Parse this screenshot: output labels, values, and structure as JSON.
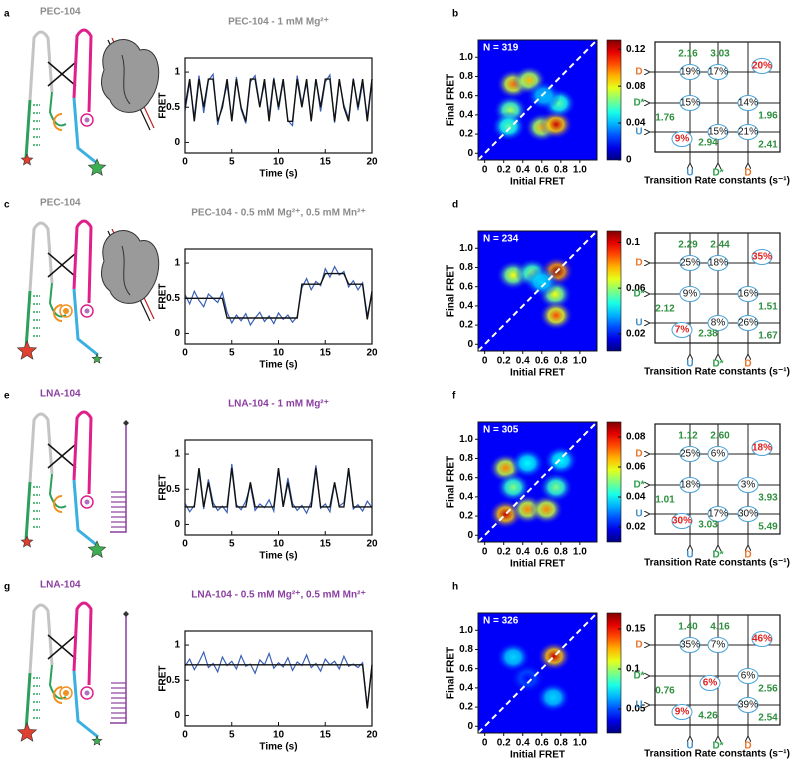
{
  "panel_labels": [
    "a",
    "b",
    "c",
    "d",
    "e",
    "f",
    "g",
    "h"
  ],
  "constructs": [
    {
      "name": "PEC-104",
      "color": "#8c8c8c"
    },
    {
      "name": "PEC-104",
      "color": "#8c8c8c"
    },
    {
      "name": "LNA-104",
      "color": "#8a3fa0"
    },
    {
      "name": "LNA-104",
      "color": "#8a3fa0"
    }
  ],
  "chart_data": [
    {
      "type": "line",
      "title": "PEC-104 - 1 mM Mg²⁺",
      "title_color": "#8c8c8c",
      "xlabel": "Time (s)",
      "ylabel": "FRET",
      "x": [
        0,
        0.5,
        1,
        1.5,
        2,
        2.5,
        3,
        3.5,
        4,
        4.5,
        5,
        5.5,
        6,
        6.5,
        7,
        7.5,
        8,
        8.5,
        9,
        9.5,
        10,
        10.5,
        11,
        11.5,
        12,
        12.5,
        13,
        13.5,
        14,
        14.5,
        15,
        15.5,
        16,
        16.5,
        17,
        17.5,
        18,
        18.5,
        19,
        19.5,
        20
      ],
      "series": [
        {
          "color": "#3a5fb5",
          "values": [
            0.45,
            0.85,
            0.36,
            0.95,
            0.42,
            0.88,
            0.97,
            0.25,
            0.55,
            0.82,
            0.34,
            0.93,
            0.47,
            0.27,
            0.86,
            0.95,
            0.52,
            0.84,
            0.38,
            0.92,
            0.46,
            0.87,
            0.31,
            0.24,
            0.95,
            0.55,
            0.84,
            0.33,
            0.9,
            0.44,
            0.86,
            0.96,
            0.28,
            0.88,
            0.53,
            0.34,
            0.91,
            0.46,
            0.84,
            0.36,
            0.9
          ]
        },
        {
          "color": "#111111",
          "values": [
            0.5,
            0.9,
            0.3,
            0.9,
            0.5,
            0.9,
            0.9,
            0.3,
            0.5,
            0.9,
            0.3,
            0.9,
            0.5,
            0.3,
            0.9,
            0.9,
            0.5,
            0.9,
            0.3,
            0.9,
            0.5,
            0.9,
            0.3,
            0.3,
            0.9,
            0.5,
            0.9,
            0.3,
            0.9,
            0.5,
            0.9,
            0.9,
            0.3,
            0.9,
            0.5,
            0.3,
            0.9,
            0.5,
            0.9,
            0.3,
            0.9
          ]
        }
      ],
      "xlim": [
        0,
        20
      ],
      "ylim": [
        -0.15,
        1.2
      ],
      "xticks": [
        0,
        5,
        10,
        15,
        20
      ],
      "yticks": [
        0,
        0.5,
        1
      ]
    },
    {
      "type": "heatmap",
      "xlabel": "Initial FRET",
      "ylabel": "Final FRET",
      "annotation": "N = 319",
      "x": [
        0.3,
        0.47,
        0.27,
        0.25,
        0.6,
        0.75,
        0.78,
        0.62
      ],
      "y": [
        0.72,
        0.76,
        0.45,
        0.28,
        0.27,
        0.3,
        0.52,
        0.6
      ],
      "values": [
        0.1,
        0.09,
        0.07,
        0.06,
        0.09,
        0.12,
        0.06,
        0.04
      ],
      "xlim": [
        -0.07,
        1.18
      ],
      "ylim": [
        -0.07,
        1.18
      ],
      "xticks": [
        0,
        0.2,
        0.4,
        0.6,
        0.8,
        {
          "value": 1,
          "label": "1.0"
        }
      ],
      "yticks": [
        0,
        0.2,
        0.4,
        0.6,
        0.8,
        {
          "value": 1,
          "label": "1.0"
        }
      ],
      "zlim": [
        0,
        0.13
      ],
      "zticks": [
        0,
        0.04,
        0.08,
        0.12
      ]
    },
    {
      "type": "line",
      "title": "PEC-104 - 0.5 mM Mg²⁺, 0.5 mM Mn²⁺",
      "title_color": "#8c8c8c",
      "xlabel": "Time (s)",
      "ylabel": "FRET",
      "x": [
        0,
        0.5,
        1,
        1.5,
        2,
        2.5,
        3,
        3.5,
        4,
        4.5,
        5,
        5.5,
        6,
        6.5,
        7,
        7.5,
        8,
        8.5,
        9,
        9.5,
        10,
        10.5,
        11,
        11.5,
        12,
        12.5,
        13,
        13.5,
        14,
        14.5,
        15,
        15.5,
        16,
        16.5,
        17,
        17.5,
        18,
        18.5,
        19,
        19.5,
        20
      ],
      "series": [
        {
          "color": "#3a5fb5",
          "values": [
            0.55,
            0.42,
            0.6,
            0.47,
            0.38,
            0.56,
            0.5,
            0.44,
            0.58,
            0.3,
            0.15,
            0.26,
            0.18,
            0.28,
            0.12,
            0.22,
            0.3,
            0.17,
            0.25,
            0.14,
            0.29,
            0.2,
            0.26,
            0.16,
            0.24,
            0.65,
            0.78,
            0.62,
            0.74,
            0.68,
            0.92,
            0.8,
            0.95,
            0.83,
            0.88,
            0.66,
            0.75,
            0.62,
            0.72,
            0.25,
            0.55
          ]
        },
        {
          "color": "#111111",
          "values": [
            0.5,
            0.5,
            0.5,
            0.5,
            0.5,
            0.5,
            0.5,
            0.5,
            0.5,
            0.22,
            0.22,
            0.22,
            0.22,
            0.22,
            0.22,
            0.22,
            0.22,
            0.22,
            0.22,
            0.22,
            0.22,
            0.22,
            0.22,
            0.22,
            0.22,
            0.7,
            0.7,
            0.7,
            0.7,
            0.7,
            0.85,
            0.85,
            0.85,
            0.85,
            0.85,
            0.7,
            0.7,
            0.7,
            0.7,
            0.2,
            0.6
          ]
        }
      ],
      "xlim": [
        0,
        20
      ],
      "ylim": [
        -0.15,
        1.2
      ],
      "xticks": [
        0,
        5,
        10,
        15,
        20
      ],
      "yticks": [
        0,
        0.5,
        1
      ]
    },
    {
      "type": "heatmap",
      "xlabel": "Initial FRET",
      "ylabel": "Final FRET",
      "annotation": "N = 234",
      "x": [
        0.3,
        0.5,
        0.76,
        0.74,
        0.75,
        0.6
      ],
      "y": [
        0.72,
        0.74,
        0.76,
        0.52,
        0.3,
        0.65
      ],
      "values": [
        0.07,
        0.06,
        0.11,
        0.07,
        0.09,
        0.04
      ],
      "xlim": [
        -0.07,
        1.18
      ],
      "ylim": [
        -0.07,
        1.18
      ],
      "xticks": [
        0,
        0.2,
        0.4,
        0.6,
        0.8,
        {
          "value": 1,
          "label": "1.0"
        }
      ],
      "yticks": [
        0,
        0.2,
        0.4,
        0.6,
        0.8,
        {
          "value": 1,
          "label": "1.0"
        }
      ],
      "zlim": [
        0.005,
        0.11
      ],
      "zticks": [
        0.02,
        0.06,
        0.1
      ]
    },
    {
      "type": "line",
      "title": "LNA-104 - 1 mM Mg²⁺",
      "title_color": "#8a3fa0",
      "xlabel": "Time (s)",
      "ylabel": "FRET",
      "x": [
        0,
        0.5,
        1,
        1.5,
        2,
        2.5,
        3,
        3.5,
        4,
        4.5,
        5,
        5.5,
        6,
        6.5,
        7,
        7.5,
        8,
        8.5,
        9,
        9.5,
        10,
        10.5,
        11,
        11.5,
        12,
        12.5,
        13,
        13.5,
        14,
        14.5,
        15,
        15.5,
        16,
        16.5,
        17,
        17.5,
        18,
        18.5,
        19,
        19.5,
        20
      ],
      "series": [
        {
          "color": "#3a5fb5",
          "values": [
            0.3,
            0.18,
            0.27,
            0.75,
            0.22,
            0.64,
            0.31,
            0.2,
            0.26,
            0.17,
            0.86,
            0.28,
            0.21,
            0.33,
            0.55,
            0.2,
            0.29,
            0.24,
            0.35,
            0.19,
            0.78,
            0.26,
            0.66,
            0.3,
            0.2,
            0.27,
            0.16,
            0.32,
            0.84,
            0.23,
            0.29,
            0.18,
            0.58,
            0.26,
            0.31,
            0.76,
            0.22,
            0.28,
            0.19,
            0.33,
            0.24
          ]
        },
        {
          "color": "#111111",
          "values": [
            0.25,
            0.25,
            0.25,
            0.8,
            0.25,
            0.6,
            0.25,
            0.25,
            0.25,
            0.25,
            0.8,
            0.25,
            0.25,
            0.25,
            0.6,
            0.25,
            0.25,
            0.25,
            0.25,
            0.25,
            0.8,
            0.25,
            0.6,
            0.25,
            0.25,
            0.25,
            0.25,
            0.25,
            0.8,
            0.25,
            0.25,
            0.25,
            0.6,
            0.25,
            0.25,
            0.8,
            0.25,
            0.25,
            0.25,
            0.25,
            0.25
          ]
        }
      ],
      "xlim": [
        0,
        20
      ],
      "ylim": [
        -0.15,
        1.2
      ],
      "xticks": [
        0,
        5,
        10,
        15,
        20
      ],
      "yticks": [
        0,
        0.5,
        1
      ]
    },
    {
      "type": "heatmap",
      "xlabel": "Initial FRET",
      "ylabel": "Final FRET",
      "annotation": "N = 305",
      "x": [
        0.22,
        0.22,
        0.45,
        0.65,
        0.75,
        0.3,
        0.8,
        0.45
      ],
      "y": [
        0.22,
        0.7,
        0.27,
        0.27,
        0.5,
        0.5,
        0.78,
        0.75
      ],
      "values": [
        0.085,
        0.07,
        0.07,
        0.07,
        0.05,
        0.05,
        0.04,
        0.04
      ],
      "xlim": [
        -0.07,
        1.18
      ],
      "ylim": [
        -0.07,
        1.18
      ],
      "xticks": [
        0,
        0.2,
        0.4,
        0.6,
        0.8,
        {
          "value": 1,
          "label": "1.0"
        }
      ],
      "yticks": [
        0,
        0.2,
        0.4,
        0.6,
        0.8,
        {
          "value": 1,
          "label": "1.0"
        }
      ],
      "zlim": [
        0.01,
        0.09
      ],
      "zticks": [
        0.02,
        0.04,
        0.06,
        0.08
      ]
    },
    {
      "type": "line",
      "title": "LNA-104 - 0.5 mM Mg²⁺, 0.5 mM Mn²⁺",
      "title_color": "#8a3fa0",
      "xlabel": "Time (s)",
      "ylabel": "FRET",
      "x": [
        0,
        0.5,
        1,
        1.5,
        2,
        2.5,
        3,
        3.5,
        4,
        4.5,
        5,
        5.5,
        6,
        6.5,
        7,
        7.5,
        8,
        8.5,
        9,
        9.5,
        10,
        10.5,
        11,
        11.5,
        12,
        12.5,
        13,
        13.5,
        14,
        14.5,
        15,
        15.5,
        16,
        16.5,
        17,
        17.5,
        18,
        18.5,
        19,
        19.5,
        20
      ],
      "series": [
        {
          "color": "#3a5fb5",
          "values": [
            0.7,
            0.8,
            0.65,
            0.76,
            0.9,
            0.68,
            0.74,
            0.62,
            0.83,
            0.71,
            0.77,
            0.66,
            0.85,
            0.7,
            0.73,
            0.6,
            0.79,
            0.72,
            0.88,
            0.67,
            0.75,
            0.69,
            0.82,
            0.64,
            0.76,
            0.71,
            0.86,
            0.68,
            0.74,
            0.63,
            0.8,
            0.72,
            0.77,
            0.66,
            0.84,
            0.7,
            0.73,
            0.68,
            0.75,
            0.12,
            0.7
          ]
        },
        {
          "color": "#111111",
          "values": [
            0.72,
            0.72,
            0.72,
            0.72,
            0.72,
            0.72,
            0.72,
            0.72,
            0.72,
            0.72,
            0.72,
            0.72,
            0.72,
            0.72,
            0.72,
            0.72,
            0.72,
            0.72,
            0.72,
            0.72,
            0.72,
            0.72,
            0.72,
            0.72,
            0.72,
            0.72,
            0.72,
            0.72,
            0.72,
            0.72,
            0.72,
            0.72,
            0.72,
            0.72,
            0.72,
            0.72,
            0.72,
            0.72,
            0.72,
            0.1,
            0.72
          ]
        }
      ],
      "xlim": [
        0,
        20
      ],
      "ylim": [
        -0.15,
        1.2
      ],
      "xticks": [
        0,
        5,
        10,
        15,
        20
      ],
      "yticks": [
        0,
        0.5,
        1
      ]
    },
    {
      "type": "heatmap",
      "xlabel": "Initial FRET",
      "ylabel": "Final FRET",
      "annotation": "N = 326",
      "x": [
        0.73,
        0.3,
        0.72,
        0.45
      ],
      "y": [
        0.73,
        0.72,
        0.3,
        0.5
      ],
      "values": [
        0.16,
        0.07,
        0.07,
        0.04
      ],
      "xlim": [
        -0.07,
        1.18
      ],
      "ylim": [
        -0.07,
        1.18
      ],
      "xticks": [
        0,
        0.2,
        0.4,
        0.6,
        0.8,
        {
          "value": 1,
          "label": "1.0"
        }
      ],
      "yticks": [
        0,
        0.2,
        0.4,
        0.6,
        0.8,
        {
          "value": 1,
          "label": "1.0"
        }
      ],
      "zlim": [
        0.02,
        0.17
      ],
      "zticks": [
        0.05,
        0.1,
        0.15
      ]
    }
  ],
  "rate_state_colors": [
    "#3d8fcc",
    "#2e9e4a",
    "#e8752a"
  ],
  "rate_diagrams": [
    {
      "state_labels": [
        "U",
        "D*",
        "D"
      ],
      "percentages": [
        [
          "19%",
          "17%",
          "20%"
        ],
        [
          "15%",
          null,
          "14%"
        ],
        [
          "9%",
          "15%",
          "21%"
        ]
      ],
      "rates": [
        "2.16",
        "3.03",
        "1.76",
        "1.96",
        "2.94",
        "2.41"
      ],
      "xlabel": "Transition Rate constants (s⁻¹)"
    },
    {
      "state_labels": [
        "U",
        "D*",
        "D"
      ],
      "percentages": [
        [
          "25%",
          "18%",
          "35%"
        ],
        [
          "9%",
          null,
          "16%"
        ],
        [
          "7%",
          "8%",
          "26%"
        ]
      ],
      "rates": [
        "2.29",
        "2.44",
        "2.12",
        "1.51",
        "2.38",
        "1.67"
      ],
      "xlabel": "Transition Rate constants (s⁻¹)"
    },
    {
      "state_labels": [
        "U",
        "D*",
        "D"
      ],
      "percentages": [
        [
          "25%",
          "6%",
          "18%"
        ],
        [
          "18%",
          null,
          "3%"
        ],
        [
          "30%",
          "17%",
          "30%"
        ]
      ],
      "rates": [
        "1.12",
        "2.60",
        "1.01",
        "3.93",
        "3.03",
        "5.49"
      ],
      "xlabel": "Transition Rate constants (s⁻¹)"
    },
    {
      "state_labels": [
        "U",
        "D*",
        "D"
      ],
      "percentages": [
        [
          "35%",
          "7%",
          "46%"
        ],
        [
          null,
          "6%",
          "6%"
        ],
        [
          "9%",
          null,
          "39%"
        ]
      ],
      "rates": [
        "1.40",
        "4.16",
        "0.76",
        "2.56",
        "4.26",
        "2.54"
      ],
      "xlabel": "Transition Rate constants (s⁻¹)"
    }
  ]
}
